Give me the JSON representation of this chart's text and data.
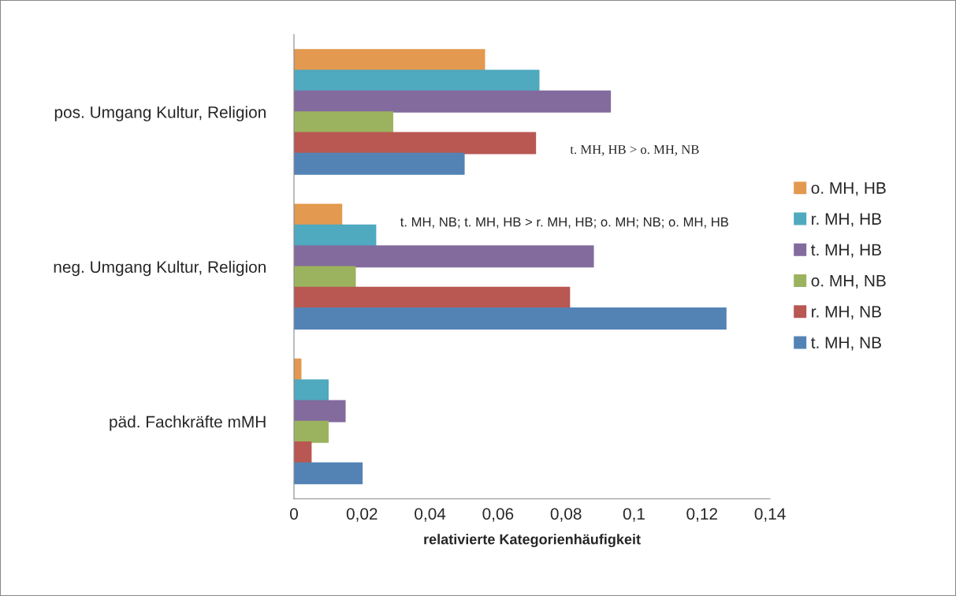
{
  "chart_data": {
    "type": "bar",
    "orientation": "horizontal",
    "categories": [
      "pos. Umgang Kultur, Religion",
      "neg. Umgang Kultur, Religion",
      "päd. Fachkräfte mMH"
    ],
    "series": [
      {
        "name": "o. MH, HB",
        "color": "#e3994f",
        "values": [
          0.056,
          0.014,
          0.002
        ]
      },
      {
        "name": "r. MH, HB",
        "color": "#4fa9bf",
        "values": [
          0.072,
          0.024,
          0.01
        ]
      },
      {
        "name": "t. MH, HB",
        "color": "#836b9e",
        "values": [
          0.093,
          0.088,
          0.015
        ]
      },
      {
        "name": "o. MH, NB",
        "color": "#9bb35e",
        "values": [
          0.029,
          0.018,
          0.01
        ]
      },
      {
        "name": "r. MH, NB",
        "color": "#b95752",
        "values": [
          0.071,
          0.081,
          0.005
        ]
      },
      {
        "name": "t. MH, NB",
        "color": "#5383b5",
        "values": [
          0.05,
          0.127,
          0.02
        ]
      }
    ],
    "xlabel": "relativierte Kategorienhäufigkeit",
    "xlim": [
      0,
      0.14
    ],
    "xticks": [
      0,
      {
        "value": 0.02,
        "label": "0,02"
      },
      {
        "value": 0.04,
        "label": "0,04"
      },
      {
        "value": 0.06,
        "label": "0,06"
      },
      {
        "value": 0.08,
        "label": "0,08"
      },
      {
        "value": 0.1,
        "label": "0,1"
      },
      {
        "value": 0.12,
        "label": "0,12"
      },
      {
        "value": 0.14,
        "label": "0,14"
      }
    ],
    "annotations": [
      "t. MH, HB > o. MH, NB",
      "t. MH, NB; t. MH, HB > r. MH, HB; o. MH; NB; o. MH, HB"
    ],
    "grid": false,
    "legend": "right"
  }
}
